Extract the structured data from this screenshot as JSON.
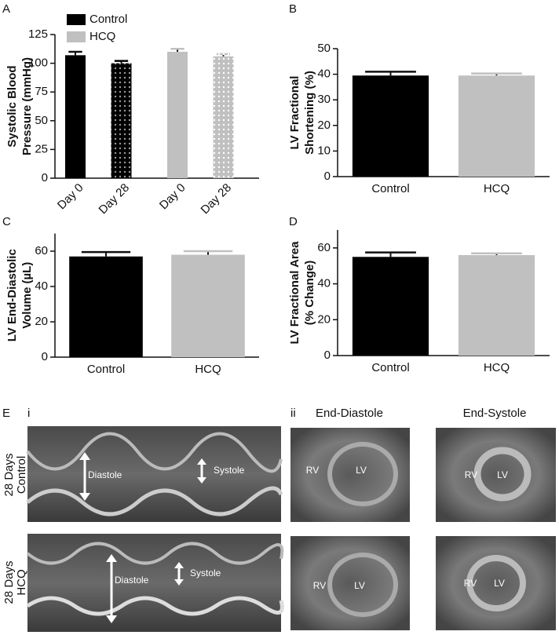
{
  "chart_data": [
    {
      "type": "bar",
      "panel": "A",
      "ylabel": [
        "Systolic Blood",
        "Pressure (mmHg)"
      ],
      "categories": [
        "Day 0",
        "Day 28"
      ],
      "hatch": [
        "none",
        "dots"
      ],
      "series": [
        {
          "name": "Control",
          "color": "#000000",
          "dot_color": "#9a9a9a",
          "values": [
            107,
            100
          ],
          "errors": [
            3,
            2
          ]
        },
        {
          "name": "HCQ",
          "color": "#c0c0c0",
          "dot_color": "#ffffff",
          "values": [
            110,
            106
          ],
          "errors": [
            2.5,
            2
          ]
        }
      ],
      "ylim": [
        0,
        125
      ],
      "yticks": [
        0,
        25,
        50,
        75,
        100,
        125
      ],
      "legend": "top-left"
    },
    {
      "type": "bar",
      "panel": "B",
      "ylabel": [
        "LV Fractional",
        "Shortening (%)"
      ],
      "categories": [
        "Control",
        "HCQ"
      ],
      "values": [
        39.5,
        39.5
      ],
      "errors": [
        1.5,
        0.8
      ],
      "colors": [
        "#000000",
        "#c0c0c0"
      ],
      "ylim": [
        0,
        50
      ],
      "yticks": [
        0,
        10,
        20,
        30,
        40,
        50
      ]
    },
    {
      "type": "bar",
      "panel": "C",
      "ylabel": [
        "LV End-Diastolic",
        "Volume (µL)"
      ],
      "categories": [
        "Control",
        "HCQ"
      ],
      "values": [
        57,
        58
      ],
      "errors": [
        2.5,
        2
      ],
      "colors": [
        "#000000",
        "#c0c0c0"
      ],
      "ylim": [
        0,
        70
      ],
      "yticks": [
        0,
        20,
        40,
        60
      ]
    },
    {
      "type": "bar",
      "panel": "D",
      "ylabel": [
        "LV Fractional Area",
        "(% Change)"
      ],
      "categories": [
        "Control",
        "HCQ"
      ],
      "values": [
        55,
        56
      ],
      "errors": [
        2.5,
        1
      ],
      "colors": [
        "#000000",
        "#c0c0c0"
      ],
      "ylim": [
        0,
        70
      ],
      "yticks": [
        0,
        20,
        40,
        60
      ]
    }
  ],
  "panel_e": {
    "panel": "E",
    "mmode_label": "i",
    "short_axis_label": "ii",
    "columns": [
      "End-Diastole",
      "End-Systole"
    ],
    "rows": [
      {
        "label": [
          "28 Days",
          "Control"
        ]
      },
      {
        "label": [
          "28 Days",
          "HCQ"
        ]
      }
    ],
    "diastole": "Diastole",
    "systole": "Systole",
    "rv": "RV",
    "lv": "LV"
  }
}
